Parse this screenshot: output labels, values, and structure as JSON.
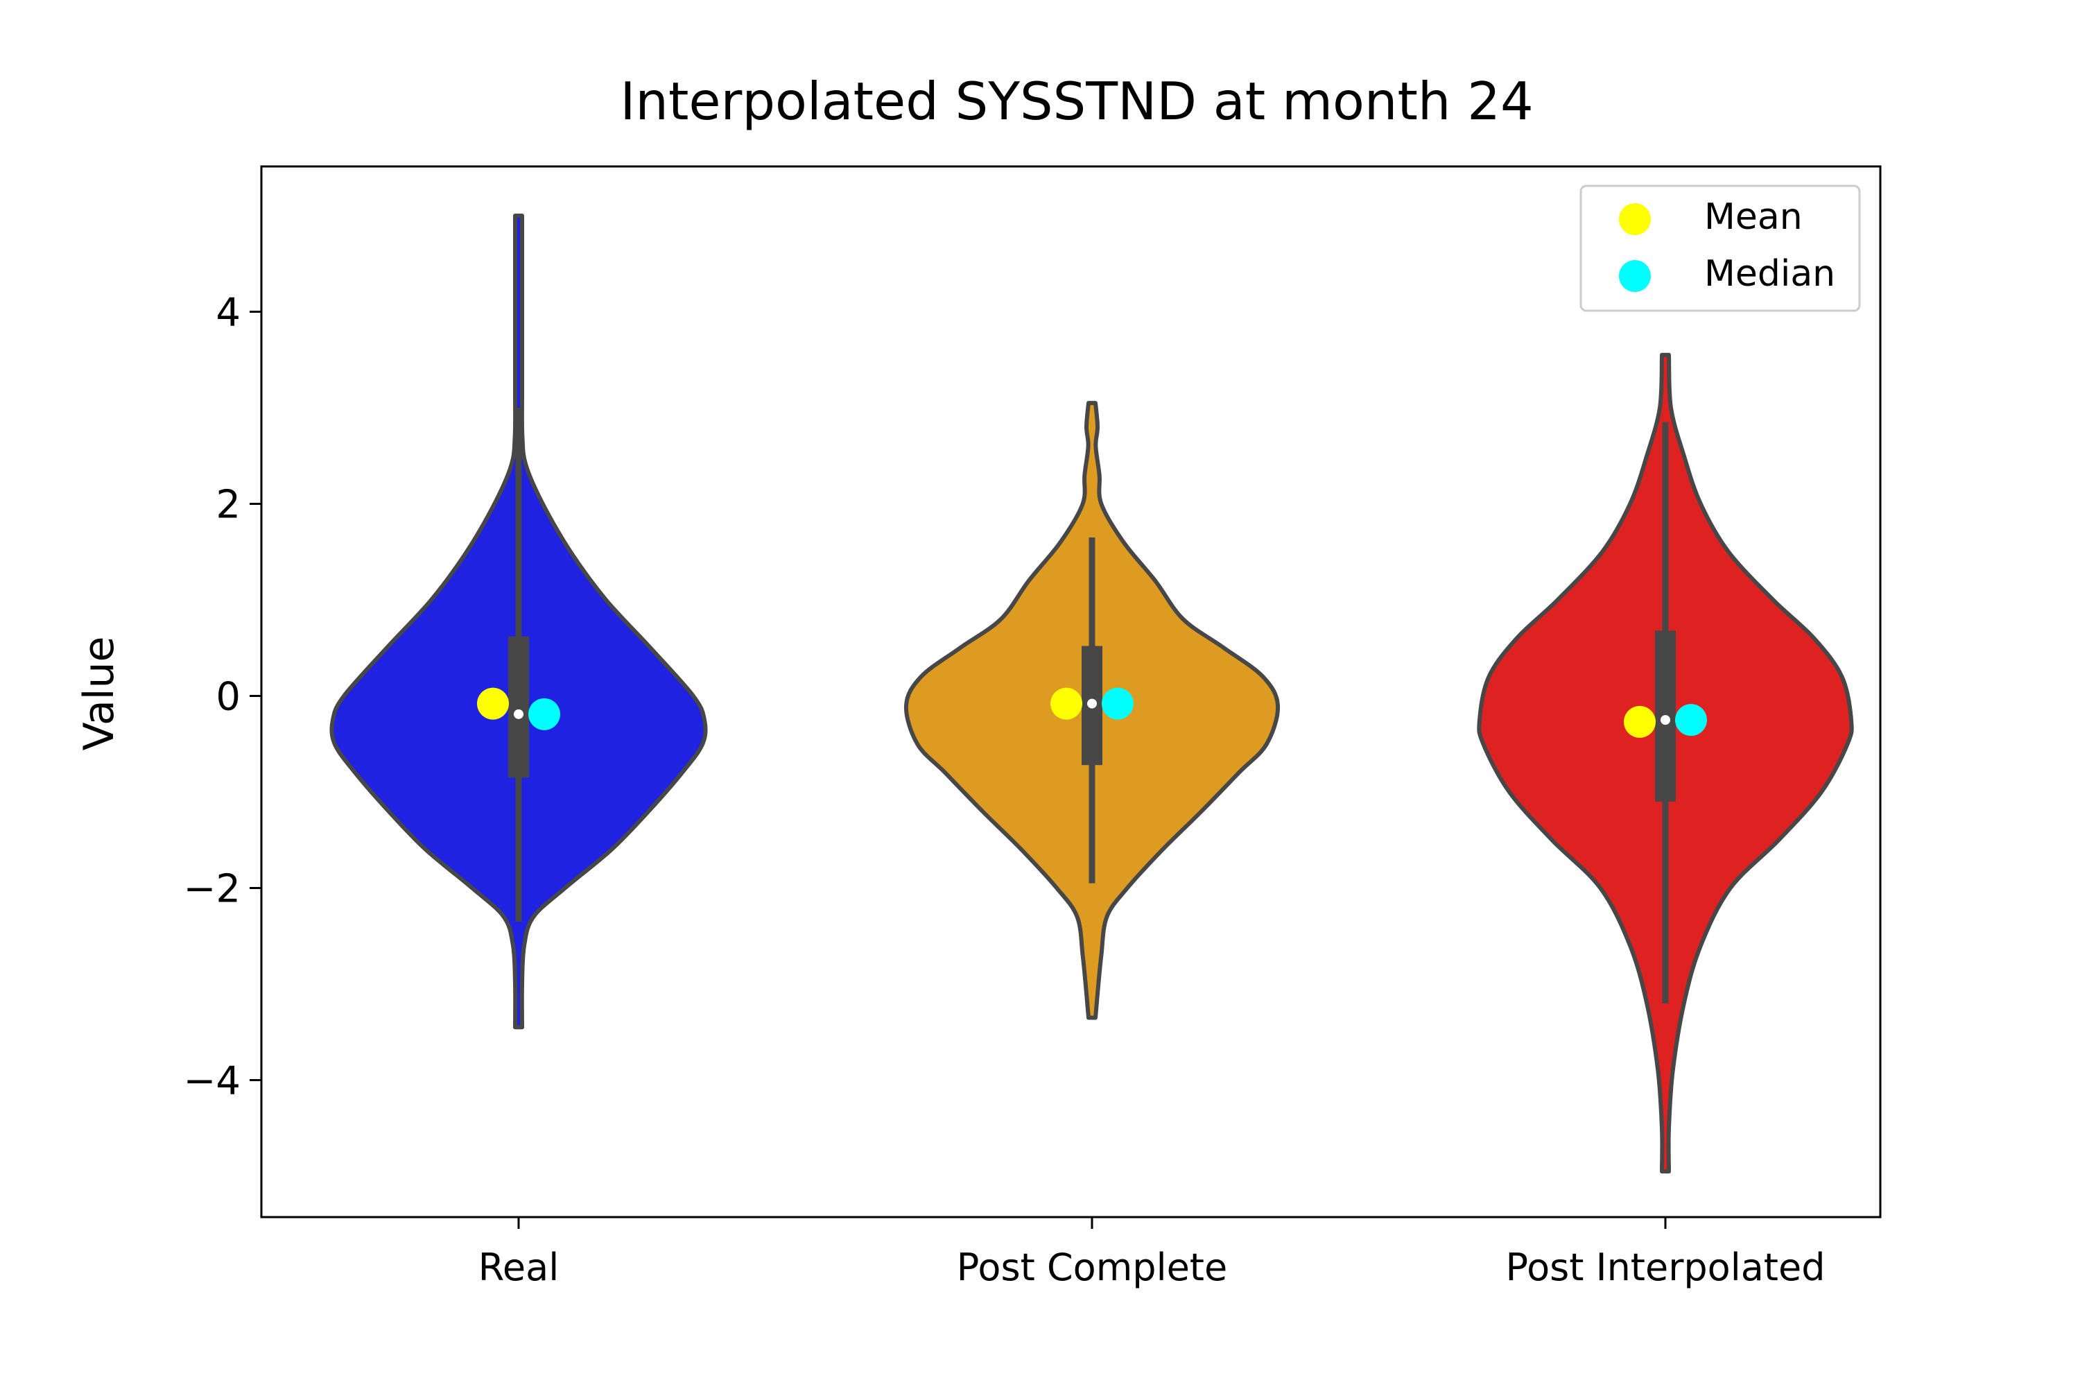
{
  "chart_data": {
    "type": "violin",
    "title": "Interpolated SYSSTND at month 24",
    "xlabel": "",
    "ylabel": "Value",
    "ylim": [
      -5.5,
      5.5
    ],
    "yticks": [
      -4,
      -2,
      0,
      2,
      4
    ],
    "ytick_labels": [
      "−4",
      "−2",
      "0",
      "2",
      "4"
    ],
    "grid": false,
    "legend": {
      "placement": "top-right",
      "entries": [
        {
          "label": "Mean",
          "color": "#ffff00"
        },
        {
          "label": "Median",
          "color": "#00ffff"
        }
      ]
    },
    "outline_color": "#474747",
    "series": [
      {
        "name": "Real",
        "color": "#1f22e0",
        "mean": -0.08,
        "median": -0.19,
        "q1": -0.85,
        "q3": 0.62,
        "whisker_low": -2.35,
        "whisker_high": 3.0,
        "min": -3.45,
        "max": 5.0,
        "density": [
          [
            -3.45,
            0.0
          ],
          [
            -3.0,
            0.01
          ],
          [
            -2.6,
            0.03
          ],
          [
            -2.3,
            0.08
          ],
          [
            -2.0,
            0.25
          ],
          [
            -1.6,
            0.5
          ],
          [
            -1.2,
            0.7
          ],
          [
            -0.8,
            0.88
          ],
          [
            -0.5,
            0.99
          ],
          [
            -0.25,
            1.0
          ],
          [
            0.0,
            0.94
          ],
          [
            0.5,
            0.71
          ],
          [
            1.0,
            0.47
          ],
          [
            1.5,
            0.28
          ],
          [
            2.0,
            0.13
          ],
          [
            2.4,
            0.04
          ],
          [
            2.7,
            0.02
          ],
          [
            3.2,
            0.01
          ],
          [
            4.0,
            0.006
          ],
          [
            5.0,
            0.0
          ]
        ]
      },
      {
        "name": "Post Complete",
        "color": "#dd9b22",
        "mean": -0.08,
        "median": -0.08,
        "q1": -0.72,
        "q3": 0.52,
        "whisker_low": -1.95,
        "whisker_high": 1.65,
        "min": -3.35,
        "max": 3.05,
        "density": [
          [
            -3.35,
            0.0
          ],
          [
            -3.1,
            0.03
          ],
          [
            -2.7,
            0.05
          ],
          [
            -2.3,
            0.08
          ],
          [
            -2.0,
            0.19
          ],
          [
            -1.6,
            0.38
          ],
          [
            -1.2,
            0.59
          ],
          [
            -0.8,
            0.79
          ],
          [
            -0.5,
            0.94
          ],
          [
            -0.1,
            1.0
          ],
          [
            0.2,
            0.92
          ],
          [
            0.5,
            0.71
          ],
          [
            0.8,
            0.49
          ],
          [
            1.2,
            0.34
          ],
          [
            1.6,
            0.17
          ],
          [
            2.0,
            0.05
          ],
          [
            2.3,
            0.04
          ],
          [
            2.6,
            0.02
          ],
          [
            2.8,
            0.03
          ],
          [
            3.05,
            0.0
          ]
        ]
      },
      {
        "name": "Post Interpolated",
        "color": "#de2121",
        "mean": -0.27,
        "median": -0.25,
        "q1": -1.1,
        "q3": 0.68,
        "whisker_low": -3.2,
        "whisker_high": 2.85,
        "min": -4.95,
        "max": 3.55,
        "density": [
          [
            -4.95,
            0.0
          ],
          [
            -4.5,
            0.01
          ],
          [
            -3.9,
            0.04
          ],
          [
            -3.2,
            0.1
          ],
          [
            -2.6,
            0.19
          ],
          [
            -2.0,
            0.35
          ],
          [
            -1.5,
            0.61
          ],
          [
            -1.0,
            0.84
          ],
          [
            -0.5,
            0.98
          ],
          [
            -0.25,
            1.0
          ],
          [
            0.2,
            0.95
          ],
          [
            0.6,
            0.8
          ],
          [
            1.0,
            0.58
          ],
          [
            1.5,
            0.34
          ],
          [
            2.0,
            0.19
          ],
          [
            2.5,
            0.1
          ],
          [
            3.0,
            0.03
          ],
          [
            3.55,
            0.0
          ]
        ]
      }
    ]
  }
}
